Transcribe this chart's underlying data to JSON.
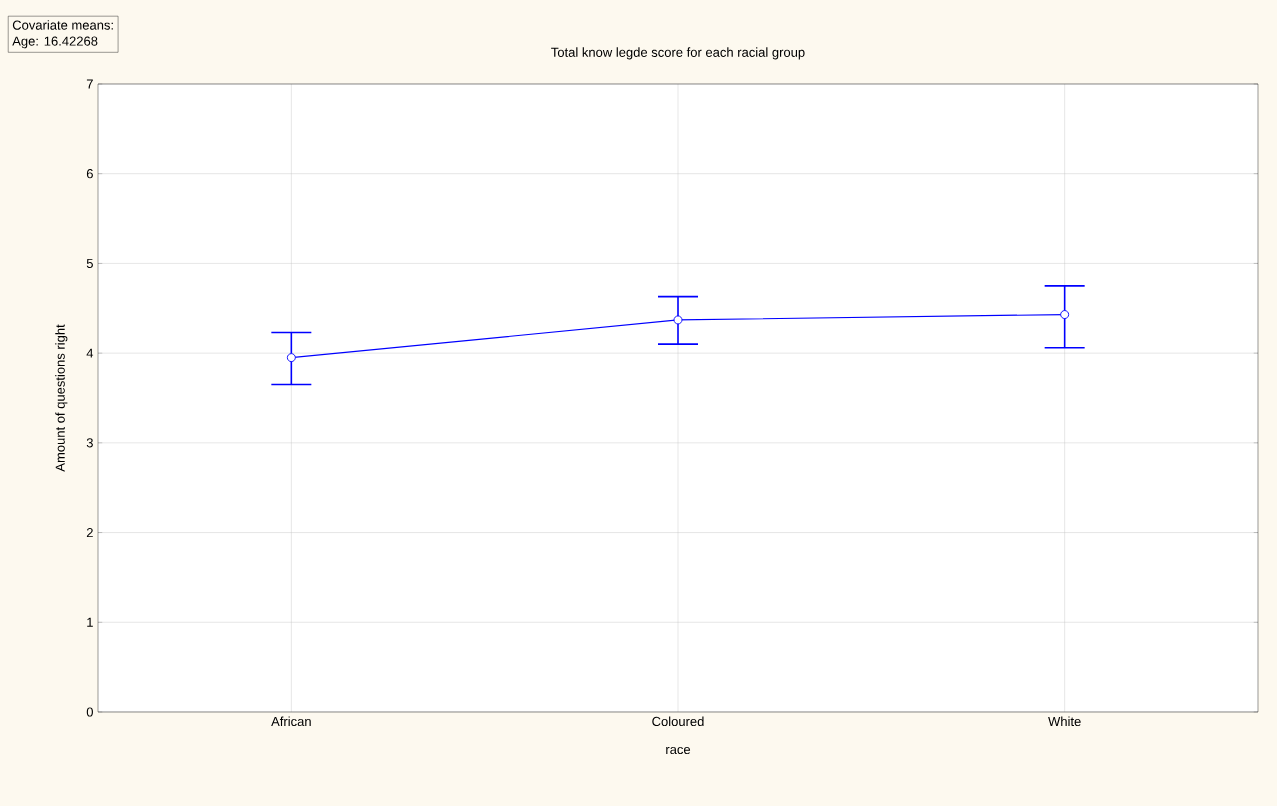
{
  "chart_data": {
    "type": "line",
    "title": "Total know legde score for each racial group",
    "xlabel": "race",
    "ylabel": "Amount of questions right",
    "annotations": [
      "Covariate means:",
      "Age: 16.42268"
    ],
    "categories": [
      "African",
      "Coloured",
      "White"
    ],
    "series": [
      {
        "color": "#0000ff",
        "values": [
          3.95,
          4.37,
          4.43
        ],
        "errors": [
          [
            3.65,
            4.23
          ],
          [
            4.1,
            4.63
          ],
          [
            4.06,
            4.75
          ]
        ]
      }
    ],
    "ylim": [
      0,
      7
    ],
    "yticks": [
      0,
      1,
      2,
      3,
      4,
      5,
      6,
      7
    ],
    "grid": true,
    "marker": "circle",
    "line_style": "solid"
  }
}
